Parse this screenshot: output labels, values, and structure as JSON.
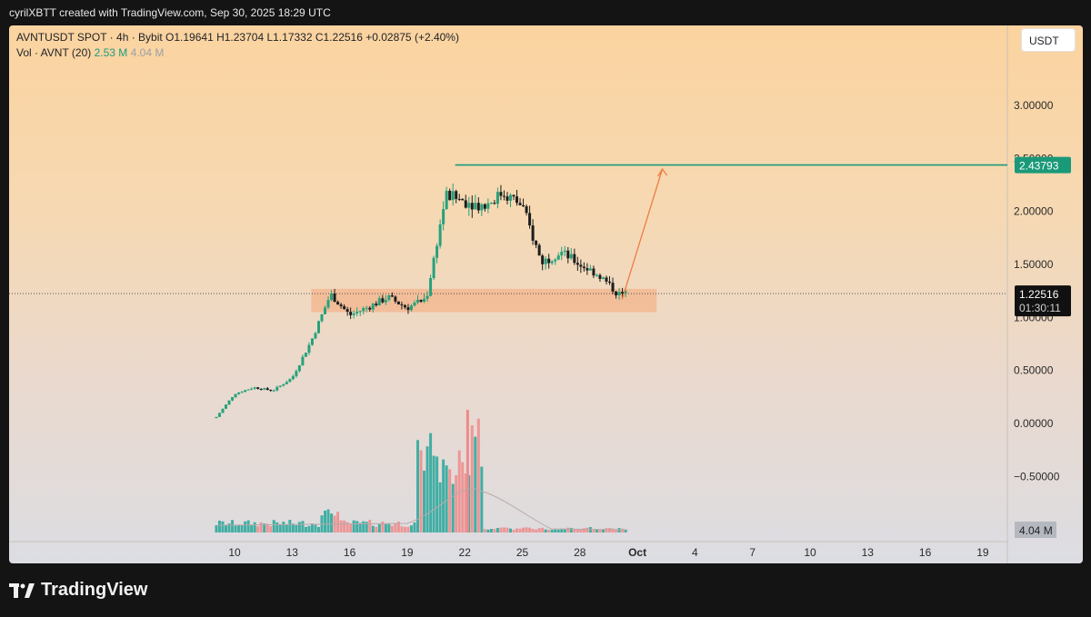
{
  "header": {
    "attribution": "cyrilXBTT created with TradingView.com, Sep 30, 2025 18:29 UTC"
  },
  "legend": {
    "symbol_line": "AVNTUSDT SPOT · 4h · Bybit   O1.19641  H1.23704  L1.17332  C1.22516  +0.02875 (+2.40%)",
    "vol_label": "Vol · AVNT (20)",
    "vol_value": "2.53 M",
    "vol_ma_value": "4.04 M"
  },
  "unit_button": "USDT",
  "brand": {
    "name": "TradingView"
  },
  "colors": {
    "up": "#26a17b",
    "down": "#1d1d1d",
    "vol_up": "#26a69a",
    "vol_down": "#ef8a8a",
    "target_line": "#1a9979",
    "arrow": "#ee7d45",
    "zone": "#f3b38b"
  },
  "chart_data": {
    "type": "candlestick",
    "symbol": "AVNTUSDT SPOT",
    "timeframe": "4h",
    "exchange": "Bybit",
    "ohlc_last": {
      "open": 1.19641,
      "high": 1.23704,
      "low": 1.17332,
      "close": 1.22516,
      "change": 0.02875,
      "change_pct": "+2.40%"
    },
    "y_axis": {
      "ticks": [
        "3.00000",
        "2.50000",
        "2.00000",
        "1.50000",
        "1.00000",
        "0.50000",
        "0.00000",
        "−0.50000"
      ],
      "range": [
        -0.5,
        3.4
      ]
    },
    "x_axis": {
      "ticks": [
        "10",
        "13",
        "16",
        "19",
        "22",
        "25",
        "28",
        "Oct",
        "4",
        "7",
        "10",
        "13",
        "16",
        "19"
      ]
    },
    "price_path_daily": [
      {
        "x": "Sep 9",
        "price": 0.05
      },
      {
        "x": "Sep 10",
        "price": 0.28
      },
      {
        "x": "Sep 11",
        "price": 0.34
      },
      {
        "x": "Sep 12",
        "price": 0.31
      },
      {
        "x": "Sep 13",
        "price": 0.43
      },
      {
        "x": "Sep 14",
        "price": 0.78
      },
      {
        "x": "Sep 15",
        "price": 1.22
      },
      {
        "x": "Sep 16",
        "price": 1.02
      },
      {
        "x": "Sep 17",
        "price": 1.1
      },
      {
        "x": "Sep 18",
        "price": 1.19
      },
      {
        "x": "Sep 19",
        "price": 1.09
      },
      {
        "x": "Sep 20",
        "price": 1.18
      },
      {
        "x": "Sep 21",
        "price": 2.15
      },
      {
        "x": "Sep 22",
        "price": 2.1
      },
      {
        "x": "Sep 23",
        "price": 2.05
      },
      {
        "x": "Sep 24",
        "price": 2.18
      },
      {
        "x": "Sep 25",
        "price": 2.05
      },
      {
        "x": "Sep 26",
        "price": 1.52
      },
      {
        "x": "Sep 27",
        "price": 1.62
      },
      {
        "x": "Sep 28",
        "price": 1.5
      },
      {
        "x": "Sep 29",
        "price": 1.4
      },
      {
        "x": "Sep 30",
        "price": 1.22
      }
    ],
    "target_level": {
      "label": "2.43793",
      "price": 2.43793
    },
    "current_price": {
      "label": "1.22516",
      "countdown": "01:30:11",
      "price": 1.22516
    },
    "support_zone": {
      "low": 1.05,
      "high": 1.27,
      "from": "Sep 14",
      "to": "Oct 2"
    },
    "projection": {
      "from": {
        "x": "Sep 30",
        "price": 1.17
      },
      "to": {
        "x": "Oct 1",
        "price": 2.4
      }
    },
    "volume_scale_label": "4.04 M",
    "volume_peak": "Sep 22"
  }
}
